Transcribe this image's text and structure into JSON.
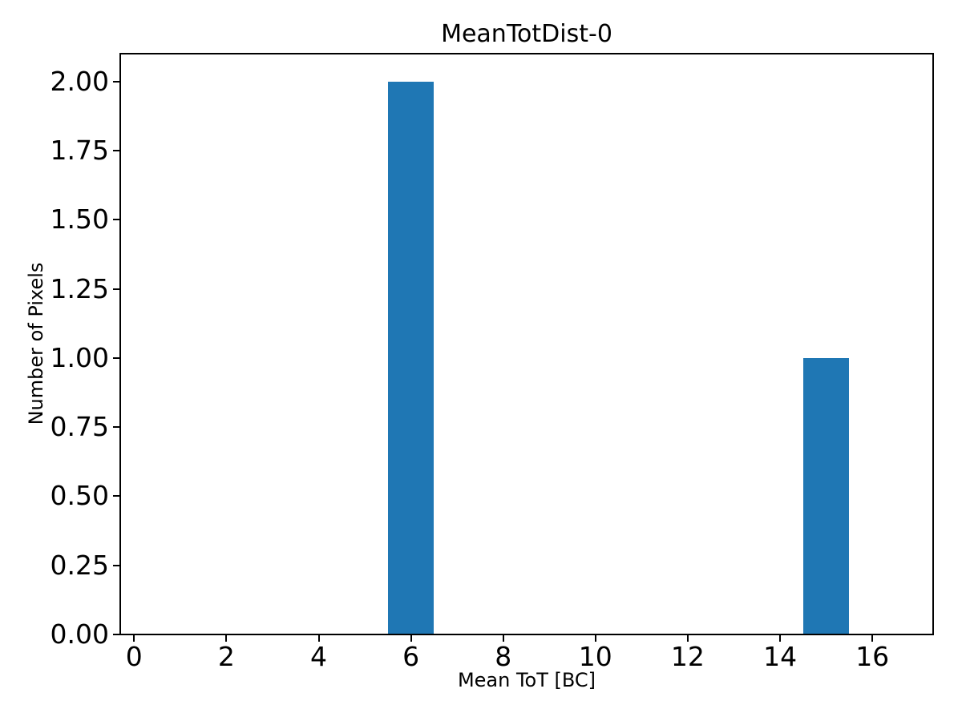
{
  "chart_data": {
    "type": "bar",
    "title": "MeanTotDist-0",
    "xlabel": "Mean ToT [BC]",
    "ylabel": "Number of Pixels",
    "xlim": [
      -0.3,
      17.3
    ],
    "ylim": [
      0,
      2.1
    ],
    "xticks": [
      {
        "value": 0,
        "label": "0"
      },
      {
        "value": 2,
        "label": "2"
      },
      {
        "value": 4,
        "label": "4"
      },
      {
        "value": 6,
        "label": "6"
      },
      {
        "value": 8,
        "label": "8"
      },
      {
        "value": 10,
        "label": "10"
      },
      {
        "value": 12,
        "label": "12"
      },
      {
        "value": 14,
        "label": "14"
      },
      {
        "value": 16,
        "label": "16"
      }
    ],
    "yticks": [
      {
        "value": 0.0,
        "label": "0.00"
      },
      {
        "value": 0.25,
        "label": "0.25"
      },
      {
        "value": 0.5,
        "label": "0.50"
      },
      {
        "value": 0.75,
        "label": "0.75"
      },
      {
        "value": 1.0,
        "label": "1.00"
      },
      {
        "value": 1.25,
        "label": "1.25"
      },
      {
        "value": 1.5,
        "label": "1.50"
      },
      {
        "value": 1.75,
        "label": "1.75"
      },
      {
        "value": 2.0,
        "label": "2.00"
      }
    ],
    "bars": [
      {
        "center": 6,
        "height": 2
      },
      {
        "center": 15,
        "height": 1
      }
    ],
    "bar_width": 1.0,
    "bar_color": "#1f77b4",
    "axis_color": "#000000",
    "background": "#ffffff",
    "grid": false,
    "legend": "none"
  }
}
